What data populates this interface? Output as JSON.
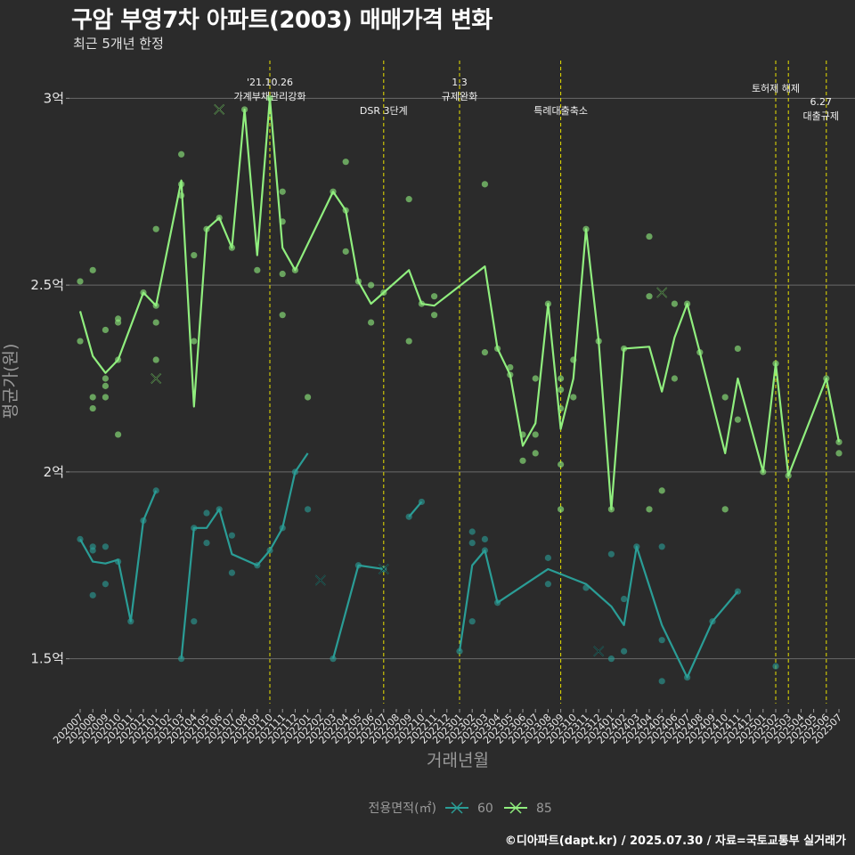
{
  "chart_data": {
    "type": "line",
    "title": "구암 부영7차 아파트(2003) 매매가격 변화",
    "subtitle": "최근 5개년 한정",
    "xlabel": "거래년월",
    "ylabel": "평균가(원)",
    "caption": "©디아파트(dapt.kr) / 2025.07.30 / 자료=국토교통부 실거래가",
    "y_unit": "억",
    "ylim": [
      1.38,
      3.12
    ],
    "y_ticks": [
      {
        "value": 1.5,
        "label": "1.5억"
      },
      {
        "value": 2.0,
        "label": "2억"
      },
      {
        "value": 2.5,
        "label": "2.5억"
      },
      {
        "value": 3.0,
        "label": "3억"
      }
    ],
    "grid": true,
    "legend": {
      "title": "전용면적(㎡)",
      "position": "bottom"
    },
    "x_categories": [
      "202007",
      "202008",
      "202009",
      "202010",
      "202011",
      "202012",
      "202101",
      "202102",
      "202103",
      "202104",
      "202105",
      "202106",
      "202107",
      "202108",
      "202109",
      "202110",
      "202111",
      "202112",
      "202201",
      "202202",
      "202203",
      "202204",
      "202205",
      "202206",
      "202207",
      "202208",
      "202209",
      "202210",
      "202211",
      "202212",
      "202301",
      "202302",
      "202303",
      "202304",
      "202305",
      "202306",
      "202307",
      "202308",
      "202309",
      "202310",
      "202311",
      "202312",
      "202401",
      "202402",
      "202403",
      "202404",
      "202405",
      "202406",
      "202407",
      "202408",
      "202409",
      "202410",
      "202411",
      "202412",
      "202501",
      "202502",
      "202503",
      "202504",
      "202505",
      "202506",
      "202507"
    ],
    "events": [
      {
        "x": "202110",
        "lines": [
          "'21.10.26",
          "가계부채관리강화"
        ]
      },
      {
        "x": "202207",
        "lines": [
          "DSR 3단계"
        ]
      },
      {
        "x": "202301",
        "lines": [
          "1.3",
          "규제완화"
        ]
      },
      {
        "x": "202309",
        "lines": [
          "특례대출축소"
        ]
      },
      {
        "x": "202502",
        "lines": [
          "토허제 해제"
        ]
      },
      {
        "x": "202503",
        "lines": []
      },
      {
        "x": "202506",
        "lines": [
          "6.27",
          "대출규제"
        ]
      }
    ],
    "series": [
      {
        "name": "60",
        "color": "#2a9d96",
        "line": [
          [
            "202007",
            1.82
          ],
          [
            "202008",
            1.76
          ],
          [
            "202009",
            1.755
          ],
          [
            "202010",
            1.765
          ],
          [
            "202011",
            1.6
          ],
          [
            "202012",
            1.87
          ],
          [
            "202101",
            1.95
          ],
          null,
          [
            "202103",
            1.5
          ],
          [
            "202104",
            1.85
          ],
          [
            "202105",
            1.85
          ],
          [
            "202106",
            1.9
          ],
          [
            "202107",
            1.78
          ],
          [
            "202109",
            1.75
          ],
          [
            "202110",
            1.79
          ],
          [
            "202111",
            1.85
          ],
          [
            "202112",
            2.0
          ],
          [
            "202201",
            2.05
          ],
          null,
          [
            "202203",
            1.5
          ],
          [
            "202205",
            1.75
          ],
          [
            "202207",
            1.74
          ],
          null,
          [
            "202209",
            1.88
          ],
          [
            "202210",
            1.92
          ],
          null,
          [
            "202301",
            1.52
          ],
          [
            "202302",
            1.75
          ],
          [
            "202303",
            1.79
          ],
          [
            "202304",
            1.65
          ],
          [
            "202308",
            1.74
          ],
          [
            "202311",
            1.7
          ],
          [
            "202401",
            1.64
          ],
          [
            "202402",
            1.59
          ],
          [
            "202403",
            1.8
          ],
          [
            "202405",
            1.59
          ],
          [
            "202407",
            1.45
          ],
          [
            "202409",
            1.6
          ],
          [
            "202411",
            1.68
          ]
        ],
        "points": [
          [
            "202007",
            1.82
          ],
          [
            "202008",
            1.79
          ],
          [
            "202008",
            1.8
          ],
          [
            "202008",
            1.67
          ],
          [
            "202009",
            1.8
          ],
          [
            "202009",
            1.7
          ],
          [
            "202010",
            1.76
          ],
          [
            "202011",
            1.6
          ],
          [
            "202012",
            1.87
          ],
          [
            "202101",
            1.95
          ],
          [
            "202103",
            1.5
          ],
          [
            "202104",
            1.85
          ],
          [
            "202104",
            1.6
          ],
          [
            "202105",
            1.81
          ],
          [
            "202105",
            1.89
          ],
          [
            "202106",
            1.9
          ],
          [
            "202107",
            1.83
          ],
          [
            "202107",
            1.73
          ],
          [
            "202109",
            1.75
          ],
          [
            "202110",
            1.79
          ],
          [
            "202111",
            1.85
          ],
          [
            "202112",
            2.0
          ],
          [
            "202201",
            1.9
          ],
          [
            "202203",
            1.5
          ],
          [
            "202205",
            1.75
          ],
          [
            "202207",
            1.74
          ],
          [
            "202209",
            1.88
          ],
          [
            "202210",
            1.92
          ],
          [
            "202301",
            1.52
          ],
          [
            "202302",
            1.84
          ],
          [
            "202302",
            1.81
          ],
          [
            "202302",
            1.6
          ],
          [
            "202303",
            1.82
          ],
          [
            "202303",
            1.79
          ],
          [
            "202304",
            1.65
          ],
          [
            "202308",
            1.77
          ],
          [
            "202308",
            1.7
          ],
          [
            "202311",
            1.69
          ],
          [
            "202401",
            1.78
          ],
          [
            "202401",
            1.5
          ],
          [
            "202402",
            1.66
          ],
          [
            "202402",
            1.52
          ],
          [
            "202403",
            1.8
          ],
          [
            "202405",
            1.55
          ],
          [
            "202405",
            1.8
          ],
          [
            "202405",
            1.44
          ],
          [
            "202407",
            1.45
          ],
          [
            "202409",
            1.6
          ],
          [
            "202411",
            1.68
          ],
          [
            "202502",
            1.48
          ]
        ],
        "cancelled": [
          [
            "202202",
            1.71
          ],
          [
            "202207",
            1.74
          ],
          [
            "202312",
            1.52
          ]
        ]
      },
      {
        "name": "85",
        "color": "#90ee7e",
        "line": [
          [
            "202007",
            2.43
          ],
          [
            "202008",
            2.31
          ],
          [
            "202009",
            2.265
          ],
          [
            "202010",
            2.3
          ],
          [
            "202012",
            2.48
          ],
          [
            "202101",
            2.445
          ],
          [
            "202103",
            2.78
          ],
          [
            "202104",
            2.175
          ],
          [
            "202105",
            2.65
          ],
          [
            "202106",
            2.68
          ],
          [
            "202107",
            2.6
          ],
          [
            "202108",
            2.97
          ],
          [
            "202109",
            2.58
          ],
          [
            "202110",
            3.0
          ],
          [
            "202111",
            2.6
          ],
          [
            "202112",
            2.54
          ],
          [
            "202203",
            2.75
          ],
          [
            "202204",
            2.7
          ],
          [
            "202205",
            2.51
          ],
          [
            "202206",
            2.45
          ],
          [
            "202207",
            2.48
          ],
          [
            "202209",
            2.54
          ],
          [
            "202210",
            2.45
          ],
          [
            "202211",
            2.445
          ],
          [
            "202303",
            2.55
          ],
          [
            "202304",
            2.33
          ],
          [
            "202305",
            2.26
          ],
          [
            "202306",
            2.07
          ],
          [
            "202307",
            2.13
          ],
          [
            "202308",
            2.45
          ],
          [
            "202309",
            2.115
          ],
          [
            "202310",
            2.25
          ],
          [
            "202311",
            2.65
          ],
          [
            "202312",
            2.35
          ],
          [
            "202401",
            1.9
          ],
          [
            "202402",
            2.33
          ],
          [
            "202404",
            2.335
          ],
          [
            "202405",
            2.215
          ],
          [
            "202406",
            2.36
          ],
          [
            "202407",
            2.45
          ],
          [
            "202408",
            2.32
          ],
          [
            "202410",
            2.05
          ],
          [
            "202411",
            2.25
          ],
          [
            "202501",
            2.0
          ],
          [
            "202502",
            2.29
          ],
          [
            "202503",
            1.99
          ],
          [
            "202506",
            2.25
          ],
          [
            "202507",
            2.08
          ]
        ],
        "points": [
          [
            "202007",
            2.51
          ],
          [
            "202007",
            2.35
          ],
          [
            "202008",
            2.54
          ],
          [
            "202008",
            2.2
          ],
          [
            "202008",
            2.17
          ],
          [
            "202009",
            2.38
          ],
          [
            "202009",
            2.25
          ],
          [
            "202009",
            2.23
          ],
          [
            "202009",
            2.2
          ],
          [
            "202010",
            2.41
          ],
          [
            "202010",
            2.4
          ],
          [
            "202010",
            2.3
          ],
          [
            "202010",
            2.1
          ],
          [
            "202012",
            2.48
          ],
          [
            "202101",
            2.65
          ],
          [
            "202101",
            2.4
          ],
          [
            "202101",
            2.3
          ],
          [
            "202101",
            2.445
          ],
          [
            "202103",
            2.85
          ],
          [
            "202103",
            2.77
          ],
          [
            "202103",
            2.74
          ],
          [
            "202104",
            2.58
          ],
          [
            "202104",
            2.35
          ],
          [
            "202105",
            2.65
          ],
          [
            "202106",
            2.68
          ],
          [
            "202107",
            2.6
          ],
          [
            "202108",
            2.97
          ],
          [
            "202109",
            2.54
          ],
          [
            "202110",
            3.0
          ],
          [
            "202111",
            2.75
          ],
          [
            "202111",
            2.67
          ],
          [
            "202111",
            2.53
          ],
          [
            "202111",
            2.42
          ],
          [
            "202112",
            2.54
          ],
          [
            "202201",
            2.2
          ],
          [
            "202203",
            2.75
          ],
          [
            "202204",
            2.83
          ],
          [
            "202204",
            2.7
          ],
          [
            "202204",
            2.59
          ],
          [
            "202205",
            2.51
          ],
          [
            "202206",
            2.5
          ],
          [
            "202206",
            2.4
          ],
          [
            "202207",
            2.48
          ],
          [
            "202209",
            2.73
          ],
          [
            "202209",
            2.35
          ],
          [
            "202210",
            2.45
          ],
          [
            "202211",
            2.47
          ],
          [
            "202211",
            2.42
          ],
          [
            "202303",
            2.77
          ],
          [
            "202303",
            2.32
          ],
          [
            "202304",
            2.33
          ],
          [
            "202305",
            2.28
          ],
          [
            "202305",
            2.26
          ],
          [
            "202306",
            2.1
          ],
          [
            "202306",
            2.03
          ],
          [
            "202307",
            2.25
          ],
          [
            "202307",
            2.1
          ],
          [
            "202307",
            2.05
          ],
          [
            "202308",
            2.45
          ],
          [
            "202309",
            2.25
          ],
          [
            "202309",
            2.22
          ],
          [
            "202309",
            2.17
          ],
          [
            "202309",
            2.02
          ],
          [
            "202309",
            1.9
          ],
          [
            "202310",
            2.3
          ],
          [
            "202310",
            2.2
          ],
          [
            "202311",
            2.65
          ],
          [
            "202312",
            2.35
          ],
          [
            "202401",
            1.9
          ],
          [
            "202402",
            2.33
          ],
          [
            "202404",
            2.63
          ],
          [
            "202404",
            2.47
          ],
          [
            "202404",
            1.9
          ],
          [
            "202405",
            1.95
          ],
          [
            "202406",
            2.45
          ],
          [
            "202406",
            2.25
          ],
          [
            "202407",
            2.45
          ],
          [
            "202408",
            2.32
          ],
          [
            "202410",
            2.2
          ],
          [
            "202410",
            1.9
          ],
          [
            "202411",
            2.33
          ],
          [
            "202411",
            2.14
          ],
          [
            "202501",
            2.0
          ],
          [
            "202502",
            2.29
          ],
          [
            "202503",
            1.99
          ],
          [
            "202506",
            2.25
          ],
          [
            "202507",
            2.08
          ],
          [
            "202507",
            2.05
          ]
        ],
        "cancelled": [
          [
            "202101",
            2.25
          ],
          [
            "202106",
            2.97
          ],
          [
            "202405",
            2.48
          ]
        ]
      }
    ]
  }
}
